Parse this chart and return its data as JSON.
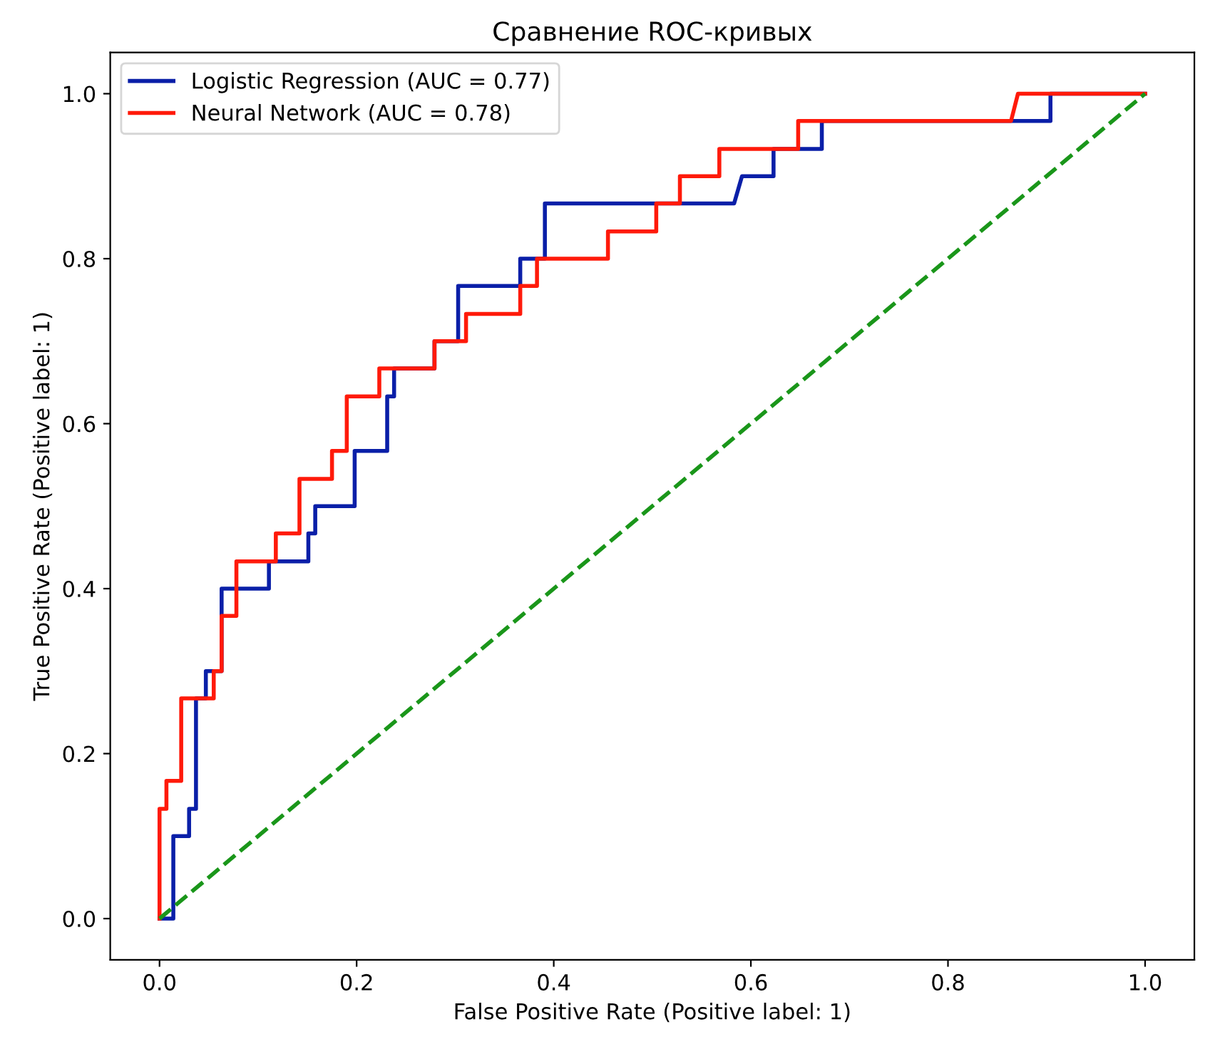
{
  "chart_data": {
    "type": "line",
    "title": "Сравнение ROC-кривых",
    "xlabel": "False Positive Rate (Positive label: 1)",
    "ylabel": "True Positive Rate (Positive label: 1)",
    "series": [
      {
        "name": "Logistic Regression (AUC = 0.77)",
        "color": "#0a1fa8",
        "x": [
          0,
          0.014,
          0.014,
          0.03,
          0.03,
          0.037,
          0.037,
          0.047,
          0.047,
          0.063,
          0.063,
          0.111,
          0.111,
          0.151,
          0.151,
          0.158,
          0.158,
          0.198,
          0.198,
          0.231,
          0.231,
          0.238,
          0.238,
          0.279,
          0.279,
          0.303,
          0.303,
          0.366,
          0.366,
          0.391,
          0.391,
          0.583,
          0.591,
          0.623,
          0.623,
          0.672,
          0.672,
          0.904,
          0.904,
          1
        ],
        "values": [
          0,
          0,
          0.1,
          0.1,
          0.133,
          0.133,
          0.267,
          0.267,
          0.3,
          0.3,
          0.4,
          0.4,
          0.433,
          0.433,
          0.467,
          0.467,
          0.5,
          0.5,
          0.567,
          0.567,
          0.633,
          0.633,
          0.667,
          0.667,
          0.7,
          0.7,
          0.767,
          0.767,
          0.8,
          0.8,
          0.867,
          0.867,
          0.9,
          0.9,
          0.933,
          0.933,
          0.967,
          0.967,
          1,
          1
        ]
      },
      {
        "name": "Neural Network (AUC = 0.78)",
        "color": "#ff1a0a",
        "x": [
          0,
          0,
          0.007,
          0.007,
          0.022,
          0.022,
          0.055,
          0.055,
          0.063,
          0.063,
          0.078,
          0.078,
          0.118,
          0.118,
          0.142,
          0.142,
          0.175,
          0.175,
          0.19,
          0.19,
          0.223,
          0.223,
          0.279,
          0.279,
          0.311,
          0.311,
          0.366,
          0.366,
          0.383,
          0.383,
          0.455,
          0.455,
          0.504,
          0.504,
          0.528,
          0.528,
          0.568,
          0.568,
          0.648,
          0.648,
          0.864,
          0.871,
          1
        ],
        "values": [
          0,
          0.133,
          0.133,
          0.167,
          0.167,
          0.267,
          0.267,
          0.3,
          0.3,
          0.367,
          0.367,
          0.433,
          0.433,
          0.467,
          0.467,
          0.533,
          0.533,
          0.567,
          0.567,
          0.633,
          0.633,
          0.667,
          0.667,
          0.7,
          0.7,
          0.733,
          0.733,
          0.767,
          0.767,
          0.8,
          0.8,
          0.833,
          0.833,
          0.867,
          0.867,
          0.9,
          0.9,
          0.933,
          0.933,
          0.967,
          0.967,
          1,
          1
        ]
      },
      {
        "color": "#1a961a",
        "line_style": "dashed",
        "x": [
          0,
          1
        ],
        "values": [
          0,
          1
        ]
      }
    ],
    "xlim": [
      -0.05,
      1.05
    ],
    "ylim": [
      -0.05,
      1.05
    ],
    "xticks": [
      {
        "value": 0,
        "label": "0.0"
      },
      0.2,
      0.4,
      0.6,
      0.8,
      {
        "value": 1,
        "label": "1.0"
      }
    ],
    "yticks": [
      {
        "value": 0,
        "label": "0.0"
      },
      0.2,
      0.4,
      0.6,
      0.8,
      {
        "value": 1,
        "label": "1.0"
      }
    ],
    "legend": "top left"
  }
}
